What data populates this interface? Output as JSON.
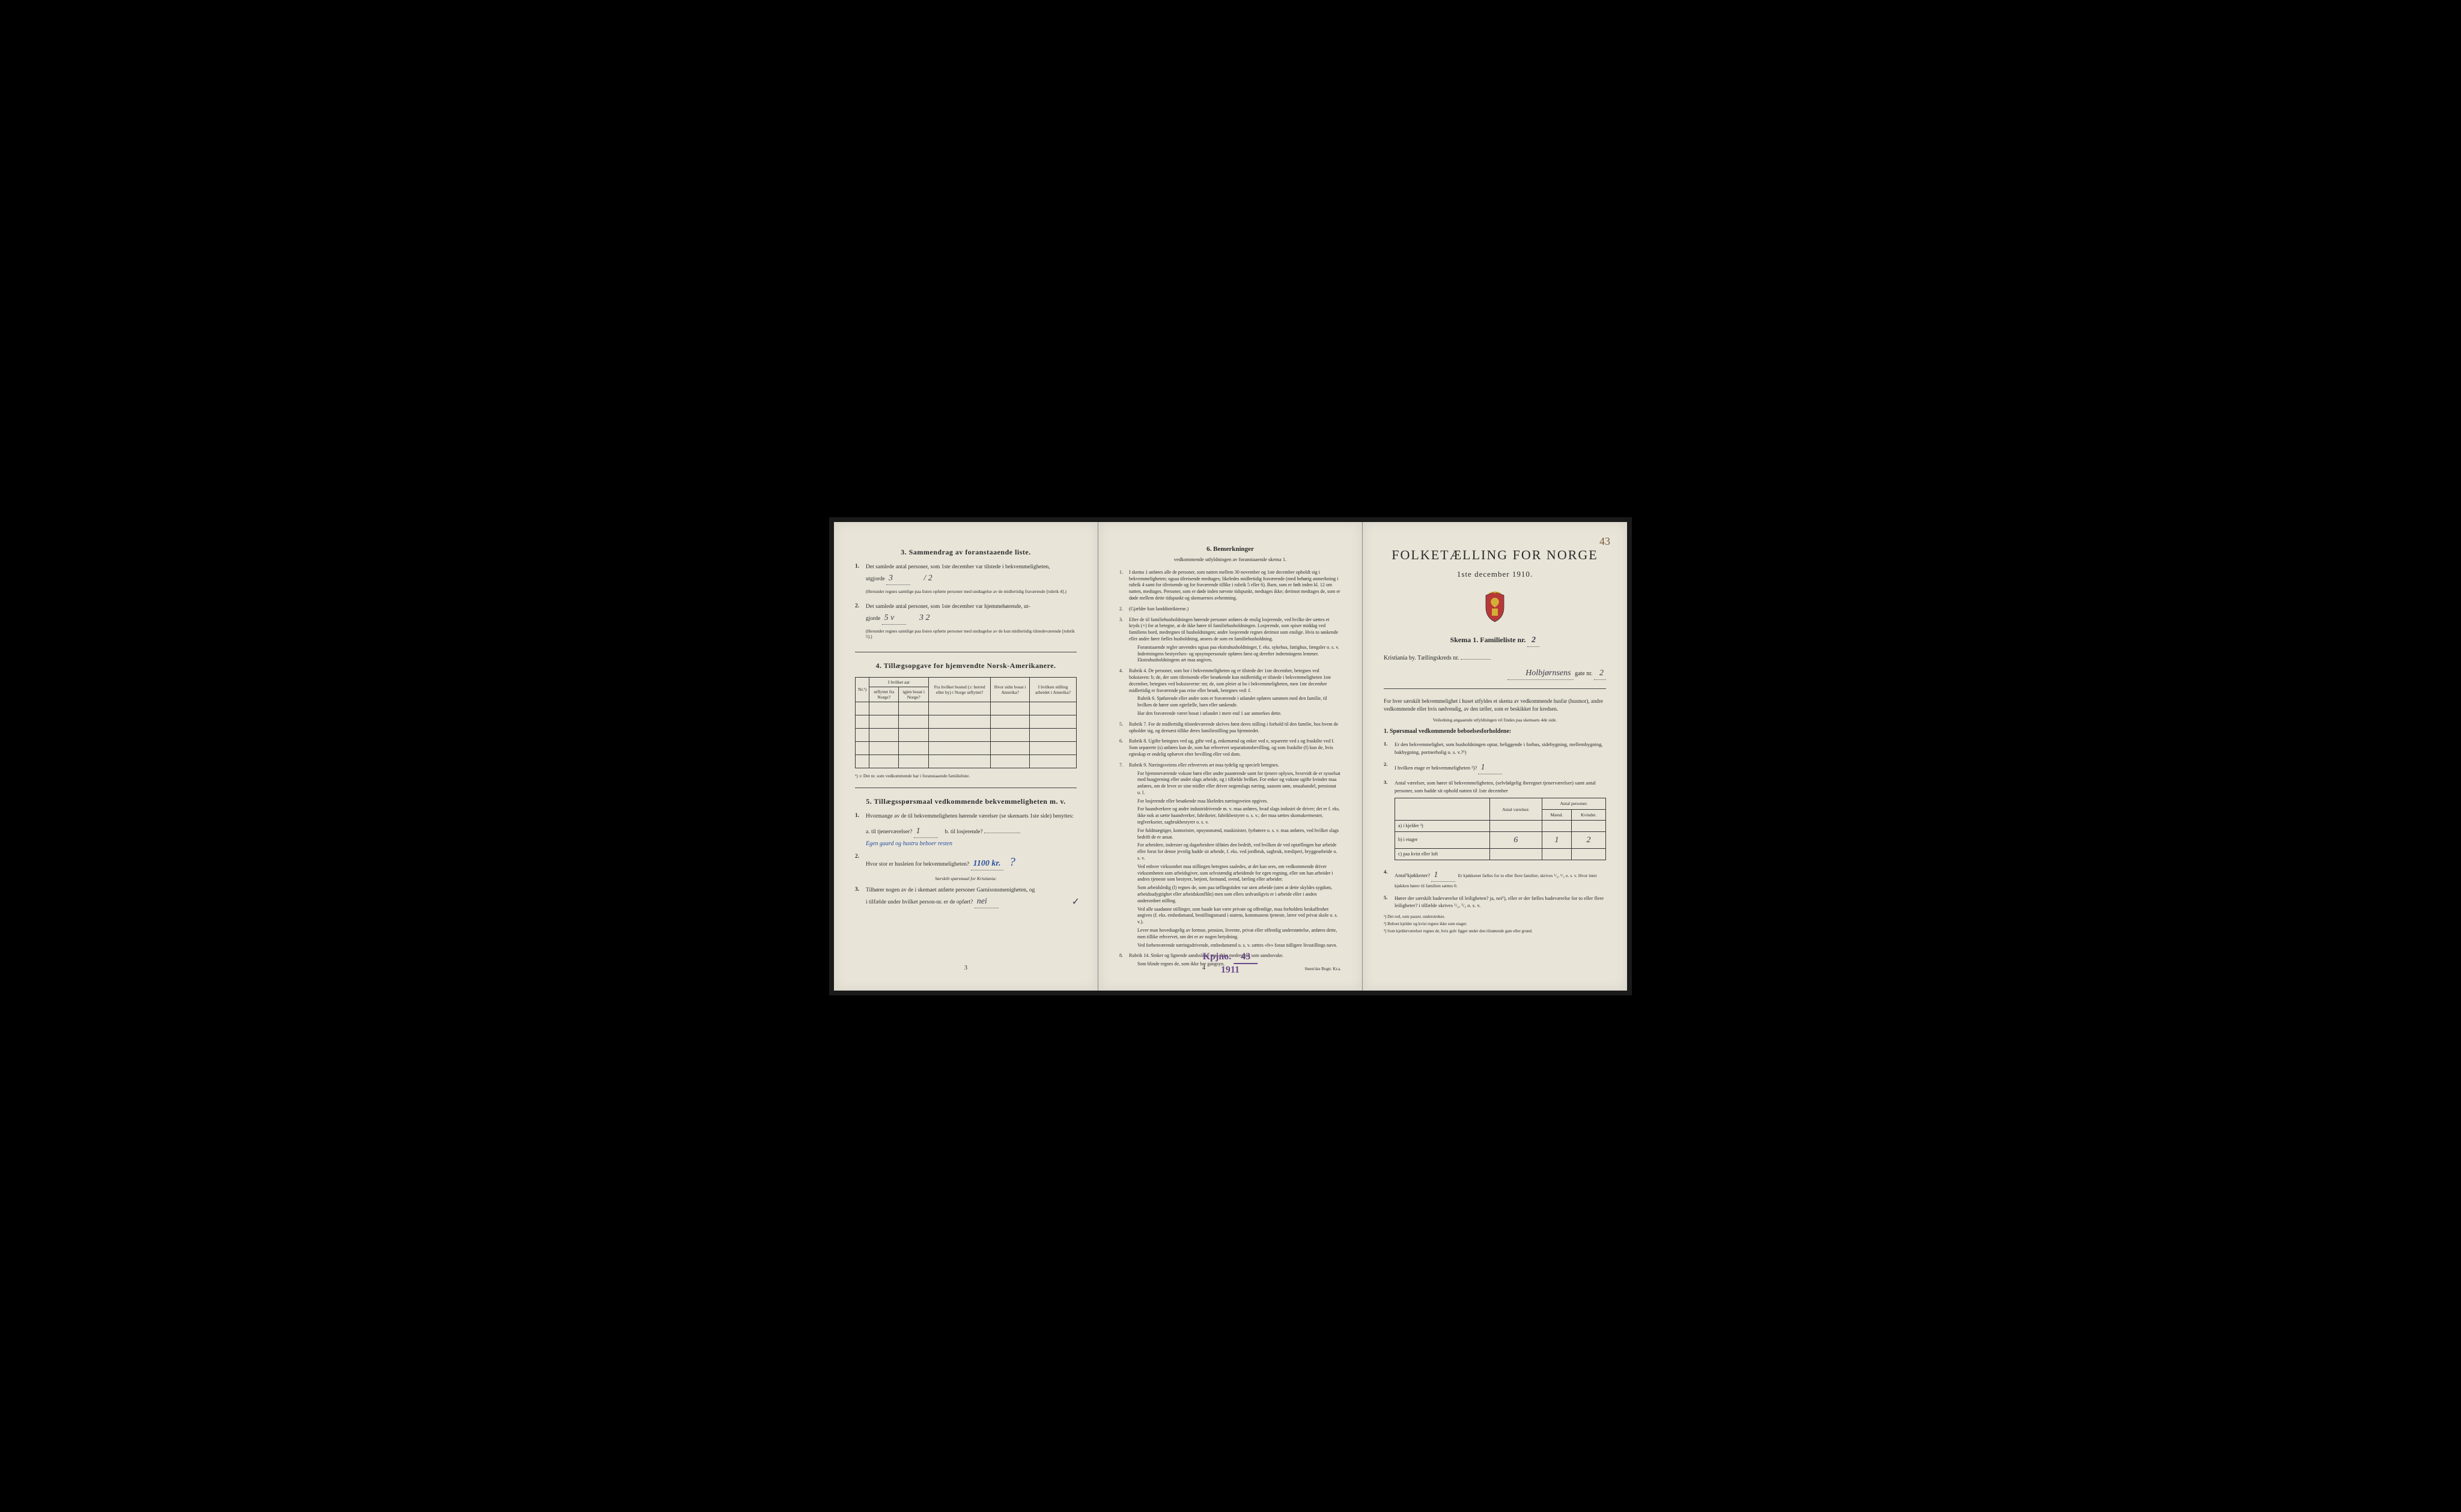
{
  "page1": {
    "section3": {
      "title": "3. Sammendrag av foranstaaende liste.",
      "q1": "Det samlede antal personer, som 1ste december var tilstede i bekvemmeligheten,",
      "q1_label": "utgjorde",
      "q1_val1": "3",
      "q1_val2": "/ 2",
      "q1_note": "(Herunder regnes samtlige paa listen opførte personer med undtagelse av de midlertidig fraværende [rubrik 4].)",
      "q2": "Det samlede antal personer, som 1ste december var hjemmehørende, ut-",
      "q2_label": "gjorde",
      "q2_val1": "5 v",
      "q2_val2": "3   2",
      "q2_note": "(Herunder regnes samtlige paa listen opførte personer med undtagelse av de kun midlertidig tilstedeværende [rubrik 5].)"
    },
    "section4": {
      "title": "4. Tillægsopgave for hjemvendte Norsk-Amerikanere.",
      "headers": {
        "col1": "Nr.¹)",
        "col2a": "I hvilket aar",
        "col2b": "utflyttet fra Norge?",
        "col2c": "igjen bosat i Norge?",
        "col3": "Fra hvilket bosted (ɔ: herred eller by) i Norge utflyttet?",
        "col4": "Hvor sidst bosat i Amerika?",
        "col5": "I hvilken stilling arbeidet i Amerika?"
      },
      "footnote": "¹) ɔ: Det nr. som vedkommende har i foranstaaende familieliste."
    },
    "section5": {
      "title": "5. Tillægsspørsmaal vedkommende bekvemmeligheten m. v.",
      "q1": "Hvormange av de til bekvemmeligheten hørende værelser (se skemaets 1ste side) benyttes:",
      "q1a": "a. til tjenerværelser?",
      "q1a_val": "1",
      "q1b": "b. til losjerende?",
      "q1b_note": "Egen gaard og hustru beboer resten",
      "q2": "Hvor stor er husleien for bekvemmeligheten?",
      "q2_val": "1100 kr.",
      "subtitle": "Særskilt spørsmaal for Kristiania:",
      "q3": "Tilhører nogen av de i skemaet anførte personer Garnisonsmenigheten, og",
      "q3b": "i tilfælde under hvilket person-nr. er de opført?",
      "q3_val": "nei",
      "checkmark": "✓"
    },
    "page_num": "3"
  },
  "page2": {
    "section6": {
      "title": "6. Bemerkninger",
      "subtitle": "vedkommende utfyldningen av foranstaaende skema 1.",
      "items": [
        {
          "num": "1.",
          "text": "I skema 1 anføres alle de personer, som natten mellem 30 november og 1ste december opholdt sig i bekvemmeligheten; ogsaa tilreisende medtages; likeledes midlertidig fraværende (med behørig anmerkning i rubrik 4 samt for tilreisende og for fraværende tillike i rubrik 5 eller 6). Barn, som er født inden kl. 12 om natten, medtages. Personer, som er døde inden nævnte tidspunkt, medtages ikke; derimot medtages de, som er døde mellem dette tidspunkt og skemaernes avhentning."
        },
        {
          "num": "2.",
          "text": "(Gjælder kun landdistrikterne.)"
        },
        {
          "num": "3.",
          "text": "Efter de til familiehusholdningen hørende personer anføres de enslig losjerende, ved hvilke der sættes et kryds (×) for at betegne, at de ikke hører til familiehusholdningen. Losjerende, som spiser middag ved familiens bord, medregnes til husholdningen; andre losjerende regnes derimot som enslige. Hvis to søskende eller andre fører fælles husholdning, ansees de som en familiehusholdning.",
          "extra": "Foranstaaende regler anvendes ogsaa paa ekstrahusholdninger, f. eks. sykehus, fattighus, fængsler o. s. v. Indretningens bestyrelses- og opsynspersonale opføres først og derefter indretningens lemmer. Ekstrahusholdningens art maa angives."
        },
        {
          "num": "4.",
          "text": "Rubrik 4. De personer, som bor i bekvemmeligheten og er tilstede der 1ste december, betegnes ved bokstaven: b; de, der som tilreisende eller besøkende kun midlertidig er tilstede i bekvemmeligheten 1ste december, betegnes ved bokstaverne: mt; de, som pleier at bo i bekvemmeligheten, men 1ste december midlertidig er fraværende paa reise eller besøk, betegnes ved: f.",
          "extra": "Rubrik 6. Sjøfarende eller andre som er fraværende i utlandet opføres sammen med den familie, til hvilken de hører som egtefælle, barn eller søskende.",
          "extra2": "Har den fraværende været bosat i utlandet i mere end 1 aar anmerkes dette."
        },
        {
          "num": "5.",
          "text": "Rubrik 7. For de midlertidig tilstedeværende skrives først deres stilling i forhold til den familie, hos hvem de opholder sig, og dernæst tillike deres familiestilling paa hjemstedet."
        },
        {
          "num": "6.",
          "text": "Rubrik 8. Ugifte betegnes ved ug, gifte ved g, enkemænd og enker ved e, separerte ved s og fraskilte ved f. Som separerte (s) anføres kun de, som har erhvervet separationsbevilling, og som fraskilte (f) kun de, hvis egteskap er endelig ophævet efter bevilling eller ved dom."
        },
        {
          "num": "7.",
          "text": "Rubrik 9. Næringsveiens eller erhvervets art maa tydelig og specielt betegnes.",
          "extra": "For hjemmeværende voksne børn eller andre paarørende samt for tjenere oplyses, hvorvidt de er sysselsat med husgjerning eller andet slags arbeide, og i tilfælde hvilket. For enker og voksne ugifte kvinder maa anføres, om de lever av sine midler eller driver nogenslags næring, saasom søm, smaahandel, pensionat o. l.",
          "extra2": "For losjerende eller besøkende maa likeledes næringsveien opgives.",
          "extra3": "For haandverkere og andre industridrivende m. v. maa anføres, hvad slags industri de driver; det er f. eks. ikke nok at sætte haandverker, fabrikeier, fabrikbestyrer o. s. v.; der maa sættes skomakermester, teglverkseier, sagbrukbestyrer o. s. v.",
          "extra4": "For fuldmægtiger, kontorister, opsynsmænd, maskinister, fyrbøtere o. s. v. maa anføres, ved hvilket slags bedrift de er ansat.",
          "extra5": "For arbeidere, inderster og dagarbeidere tilføies den bedrift, ved hvilken de ved optællingen har arbeide eller forut for denne jevnlig hadde sit arbeide, f. eks. ved jordbruk, sagbruk, træsliperi, bryggearbeide o. s. v.",
          "extra6": "Ved enhver virksomhet maa stillingen betegnes saaledes, at det kan sees, om vedkommende driver virksomheten som arbeidsgiver, som selvstændig arbeidende for egen regning, eller om han arbeider i andres tjeneste som bestyrer, betjent, formand, svend, lærling eller arbeider.",
          "extra7": "Som arbeidsledig (l) regnes de, som paa tællingstiden var uten arbeide (uten at dette skyldes sygdom, arbeidsudygtighet eller arbeidskonflikt) men som ellers sedvanligvis er i arbeide eller i anden underordnet stilling.",
          "extra8": "Ved alle saadanne stillinger, som baade kan være private og offentlige, maa forholdets beskaffenhet angives (f. eks. embedsmand, bestillingsmand i statens, kommunens tjeneste, lærer ved privat skole o. s. v.).",
          "extra9": "Lever man hovedsagelig av formue, pension, livrente, privat eller offentlig understøttelse, anføres dette, men tillike erhvervet, om det er av nogen betydning.",
          "extra10": "Ved forhenværende næringsdrivende, embedsmænd o. s. v. sættes «fv» foran tidligere livsstillings navn."
        },
        {
          "num": "8.",
          "text": "Rubrik 14. Sinker og lignende aandssløve maa ikke medregnes som aandssvake.",
          "extra": "Som blinde regnes de, som ikke har gangsyn."
        }
      ]
    },
    "stamp_label": "Kpjno.",
    "stamp_num": "43",
    "stamp_year": "1911",
    "page_num": "4",
    "footer": "Steen'ske Bogtr. Kr.a."
  },
  "page3": {
    "corner": "43",
    "main_title": "FOLKETÆLLING FOR NORGE",
    "sub_title": "1ste december 1910.",
    "skema": "Skema 1.   Familieliste nr.",
    "skema_num": "2",
    "location_label": "Kristiania by.  Tællingskreds nr.",
    "street": "Holbjørnsens",
    "street_suffix": "gate nr.",
    "street_num": "2",
    "intro": "For hver særskilt bekvemmelighet i huset utfyldes et skema av vedkommende husfar (husmor), andre vedkommende eller hvis nødvendig, av den tæller, som er beskikket for kredsen.",
    "intro_note": "Veiledning angaaende utfyldningen vil findes paa skemaets 4de side.",
    "section1_title": "1. Spørsmaal vedkommende beboelsesforholdene:",
    "q1": "Er den bekvemmelighet, som husholdningen optar, beliggende i forhus, sidebygning, mellembygning, bakbygning, portnerbolig o. s. v.?¹)",
    "q2": "I hvilken etage er bekvemmeligheten ²)?",
    "q2_val": "1",
    "q3": "Antal værelser, som hører til bekvemmeligheten, (selvfølgelig iberegnet tjenerværelser) samt antal personer, som hadde sit ophold natten til 1ste december",
    "table": {
      "h1": "Antal værelser.",
      "h2": "Antal personer.",
      "h2a": "Mænd.",
      "h2b": "Kvinder.",
      "row_a": "a) i kjelder ³)",
      "row_b": "b) i etager",
      "row_b_val1": "6",
      "row_b_val2": "1",
      "row_b_val3": "2",
      "row_c": "c) paa kvist eller loft"
    },
    "q4": "Antal¹kjøkkener?",
    "q4_val": "1",
    "q4_note": "Er kjøkkenet fælles for to eller flere familier, skrives ¹/₂, ¹/₃ o. s. v. Hvor intet kjøkken hører til familien sættes 0.",
    "q5": "Hører der særskilt badeværelse til leiligheten? ja, nei¹), eller er der fælles badeværelse for to eller flere leiligheter? i tilfælde skrives ¹/₂, ¹/₃ o. s. v.",
    "footnotes": {
      "f1": "¹) Det ord, som passer, understrekes.",
      "f2": "²) Beboet kjelder og kvist regnes ikke som etager.",
      "f3": "³) Som kjelderværelser regnes de, hvis gulv ligger under den tilstøtende gate eller grund."
    }
  },
  "colors": {
    "paper": "#e8e4d8",
    "text": "#2a2a2a",
    "border": "#333333",
    "handwriting": "#3a3a4a",
    "blue_ink": "#2850a0",
    "stamp": "#6a4a8a",
    "pencil": "#7a5a3a"
  }
}
